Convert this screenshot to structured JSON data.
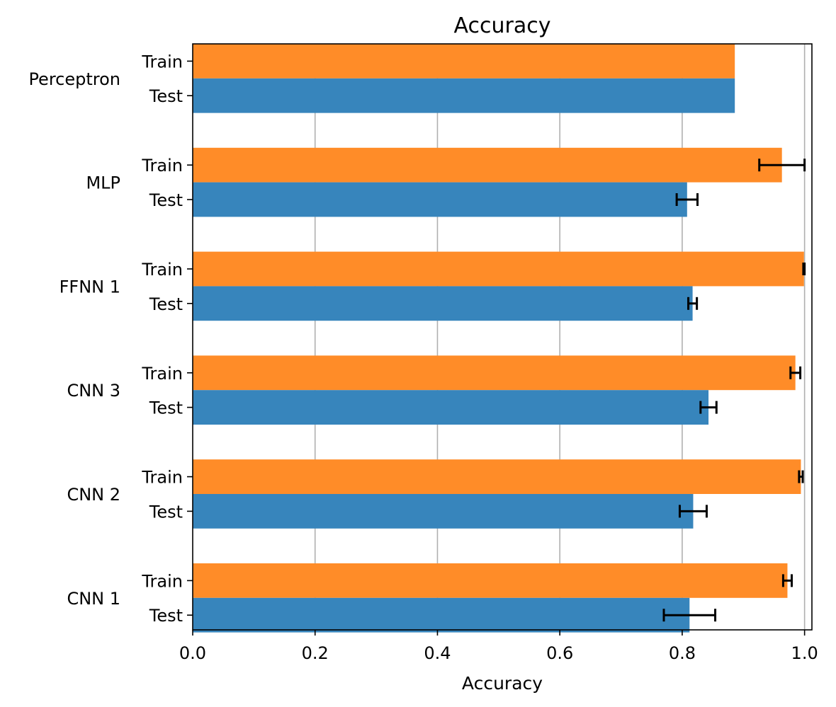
{
  "chart_data": {
    "type": "bar",
    "orientation": "horizontal",
    "title": "Accuracy",
    "xlabel": "Accuracy",
    "ylabel": "",
    "xlim": [
      0.0,
      1.012
    ],
    "xticks": [
      0.0,
      0.2,
      0.4,
      0.6,
      0.8,
      1.0
    ],
    "xtick_labels": [
      "0.0",
      "0.2",
      "0.4",
      "0.6",
      "0.8",
      "1.0"
    ],
    "grid": "vertical",
    "legend": "none",
    "categories": [
      "Perceptron",
      "MLP",
      "FFNN 1",
      "CNN 3",
      "CNN 2",
      "CNN 1"
    ],
    "series": [
      {
        "name": "Train",
        "color": "#ff8c28",
        "values": [
          0.886,
          0.963,
          0.999,
          0.985,
          0.994,
          0.972
        ],
        "error": [
          0.0,
          0.037,
          0.001,
          0.008,
          0.003,
          0.007
        ]
      },
      {
        "name": "Test",
        "color": "#3785bc",
        "values": [
          0.886,
          0.808,
          0.817,
          0.843,
          0.818,
          0.812
        ],
        "error": [
          0.0,
          0.017,
          0.007,
          0.013,
          0.022,
          0.042
        ]
      }
    ]
  }
}
